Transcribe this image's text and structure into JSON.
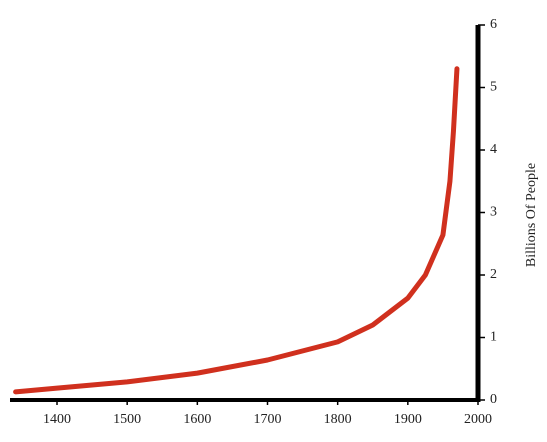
{
  "chart_data": {
    "type": "line",
    "y_label": "Billions Of People",
    "x": [
      1341,
      1400,
      1500,
      1600,
      1700,
      1800,
      1850,
      1900,
      1925,
      1950,
      1960,
      1965,
      1970
    ],
    "series": [
      {
        "color": "#d0301e",
        "values": [
          0.13,
          0.19,
          0.29,
          0.43,
          0.64,
          0.93,
          1.2,
          1.63,
          2.0,
          2.64,
          3.5,
          4.3,
          5.3
        ]
      }
    ],
    "xlim": [
      1333,
      2000
    ],
    "xticks": [
      1400,
      1500,
      1600,
      1700,
      1800,
      1900,
      2000
    ],
    "ylim": [
      0,
      6
    ],
    "yticks": [
      0,
      1,
      2,
      3,
      4,
      5,
      6
    ]
  }
}
